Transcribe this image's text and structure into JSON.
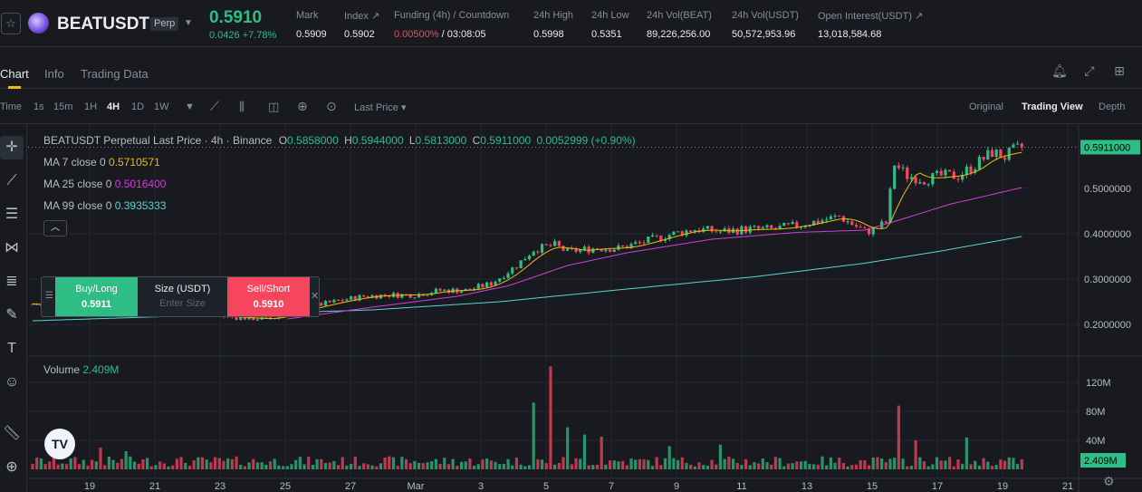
{
  "header": {
    "favorite_icon": "star-icon",
    "coin_icon": "beat-coin-icon",
    "symbol": "BEATUSDT",
    "badge": "Perp",
    "last_price": "0.5910",
    "change": "0.0426 +7.78%",
    "stats": [
      {
        "label": "Mark",
        "value": "0.5909"
      },
      {
        "label": "Index ↗",
        "value": "0.5902"
      },
      {
        "label": "Funding (4h) / Countdown",
        "value_red": "0.00500%",
        "value_rest": " / 03:08:05"
      },
      {
        "label": "24h High",
        "value": "0.5998"
      },
      {
        "label": "24h Low",
        "value": "0.5351"
      },
      {
        "label": "24h Vol(BEAT)",
        "value": "89,226,256.00"
      },
      {
        "label": "24h Vol(USDT)",
        "value": "50,572,953.96"
      },
      {
        "label": "Open Interest(USDT) ↗",
        "value": "13,018,584.68"
      }
    ]
  },
  "tabs": [
    "Chart",
    "Info",
    "Trading Data"
  ],
  "toolbar": {
    "time_label": "Time",
    "intervals": [
      "1s",
      "15m",
      "1H",
      "4H",
      "1D",
      "1W"
    ],
    "active_interval": "4H",
    "price_type": "Last Price",
    "views": [
      "Original",
      "Trading View",
      "Depth"
    ],
    "active_view": "Trading View"
  },
  "legend": {
    "title": "BEATUSDT Perpetual Last Price · 4h · Binance",
    "ohlc": [
      {
        "k": "O",
        "v": "0.5858000"
      },
      {
        "k": "H",
        "v": "0.5944000"
      },
      {
        "k": "L",
        "v": "0.5813000"
      },
      {
        "k": "C",
        "v": "0.5911000"
      }
    ],
    "change": "0.0052999 (+0.90%)",
    "ma7_label": "MA 7 close 0",
    "ma7_value": "0.5710571",
    "ma25_label": "MA 25 close 0",
    "ma25_value": "0.5016400",
    "ma99_label": "MA 99 close 0",
    "ma99_value": "0.3935333",
    "volume_label": "Volume",
    "volume_value": "2.409M"
  },
  "order_panel": {
    "buy_label": "Buy/Long",
    "buy_price": "0.5911",
    "size_label": "Size (USDT)",
    "size_placeholder": "Enter Size",
    "sell_label": "Sell/Short",
    "sell_price": "0.5910"
  },
  "colors": {
    "up": "#2ebd85",
    "down": "#f6465d",
    "ma7": "#f0b90b",
    "ma25": "#d63cdd",
    "ma99": "#5ad4d0"
  },
  "chart_data": {
    "type": "candlestick",
    "price_axis": [
      "0.5000000",
      "0.4000000",
      "0.3000000",
      "0.2000000"
    ],
    "price_ticks": [
      0.5,
      0.4,
      0.3,
      0.2
    ],
    "current_price_label": "0.5911000",
    "current_price": 0.5911,
    "volume_axis": [
      "120M",
      "80M",
      "40M"
    ],
    "volume_ticks": [
      120,
      80,
      40
    ],
    "current_volume_label": "2.409M",
    "x_labels": [
      "19",
      "21",
      "23",
      "25",
      "27",
      "Mar",
      "3",
      "5",
      "7",
      "9",
      "11",
      "13",
      "15",
      "17",
      "19",
      "21"
    ],
    "ylim": [
      0.14,
      0.62
    ],
    "volume_max": 150,
    "close_path": [
      [
        0,
        0.245
      ],
      [
        12,
        0.225
      ],
      [
        16,
        0.228
      ],
      [
        20,
        0.232
      ],
      [
        24,
        0.24
      ],
      [
        28,
        0.236
      ],
      [
        32,
        0.23
      ],
      [
        36,
        0.228
      ],
      [
        40,
        0.222
      ],
      [
        44,
        0.218
      ],
      [
        48,
        0.215
      ],
      [
        52,
        0.213
      ],
      [
        56,
        0.212
      ],
      [
        60,
        0.225
      ],
      [
        66,
        0.24
      ],
      [
        72,
        0.252
      ],
      [
        78,
        0.262
      ],
      [
        84,
        0.265
      ],
      [
        90,
        0.265
      ],
      [
        96,
        0.275
      ],
      [
        102,
        0.275
      ],
      [
        108,
        0.29
      ],
      [
        114,
        0.33
      ],
      [
        118,
        0.365
      ],
      [
        123,
        0.375
      ],
      [
        126,
        0.36
      ],
      [
        132,
        0.368
      ],
      [
        138,
        0.368
      ],
      [
        144,
        0.382
      ],
      [
        150,
        0.398
      ],
      [
        156,
        0.41
      ],
      [
        162,
        0.405
      ],
      [
        168,
        0.41
      ],
      [
        174,
        0.41
      ],
      [
        180,
        0.418
      ],
      [
        186,
        0.43
      ],
      [
        190,
        0.438
      ],
      [
        196,
        0.405
      ],
      [
        198,
        0.408
      ],
      [
        201,
        0.425
      ],
      [
        203,
        0.555
      ],
      [
        206,
        0.528
      ],
      [
        210,
        0.52
      ],
      [
        214,
        0.528
      ],
      [
        218,
        0.528
      ],
      [
        222,
        0.552
      ],
      [
        226,
        0.58
      ],
      [
        229,
        0.57
      ],
      [
        231,
        0.583
      ],
      [
        233,
        0.591
      ]
    ],
    "ma25_path": [
      [
        60,
        0.212
      ],
      [
        80,
        0.238
      ],
      [
        100,
        0.262
      ],
      [
        112,
        0.285
      ],
      [
        126,
        0.33
      ],
      [
        140,
        0.358
      ],
      [
        160,
        0.388
      ],
      [
        180,
        0.403
      ],
      [
        196,
        0.408
      ],
      [
        204,
        0.43
      ],
      [
        216,
        0.465
      ],
      [
        233,
        0.502
      ]
    ],
    "ma99_path": [
      [
        0,
        0.208
      ],
      [
        40,
        0.22
      ],
      [
        80,
        0.232
      ],
      [
        110,
        0.25
      ],
      [
        140,
        0.278
      ],
      [
        170,
        0.305
      ],
      [
        196,
        0.335
      ],
      [
        214,
        0.362
      ],
      [
        233,
        0.394
      ]
    ],
    "volume_spikes": [
      [
        16,
        30
      ],
      [
        22,
        25
      ],
      [
        118,
        92
      ],
      [
        122,
        142
      ],
      [
        126,
        58
      ],
      [
        130,
        48
      ],
      [
        134,
        45
      ],
      [
        150,
        32
      ],
      [
        162,
        34
      ],
      [
        204,
        88
      ],
      [
        208,
        40
      ],
      [
        220,
        44
      ]
    ]
  }
}
